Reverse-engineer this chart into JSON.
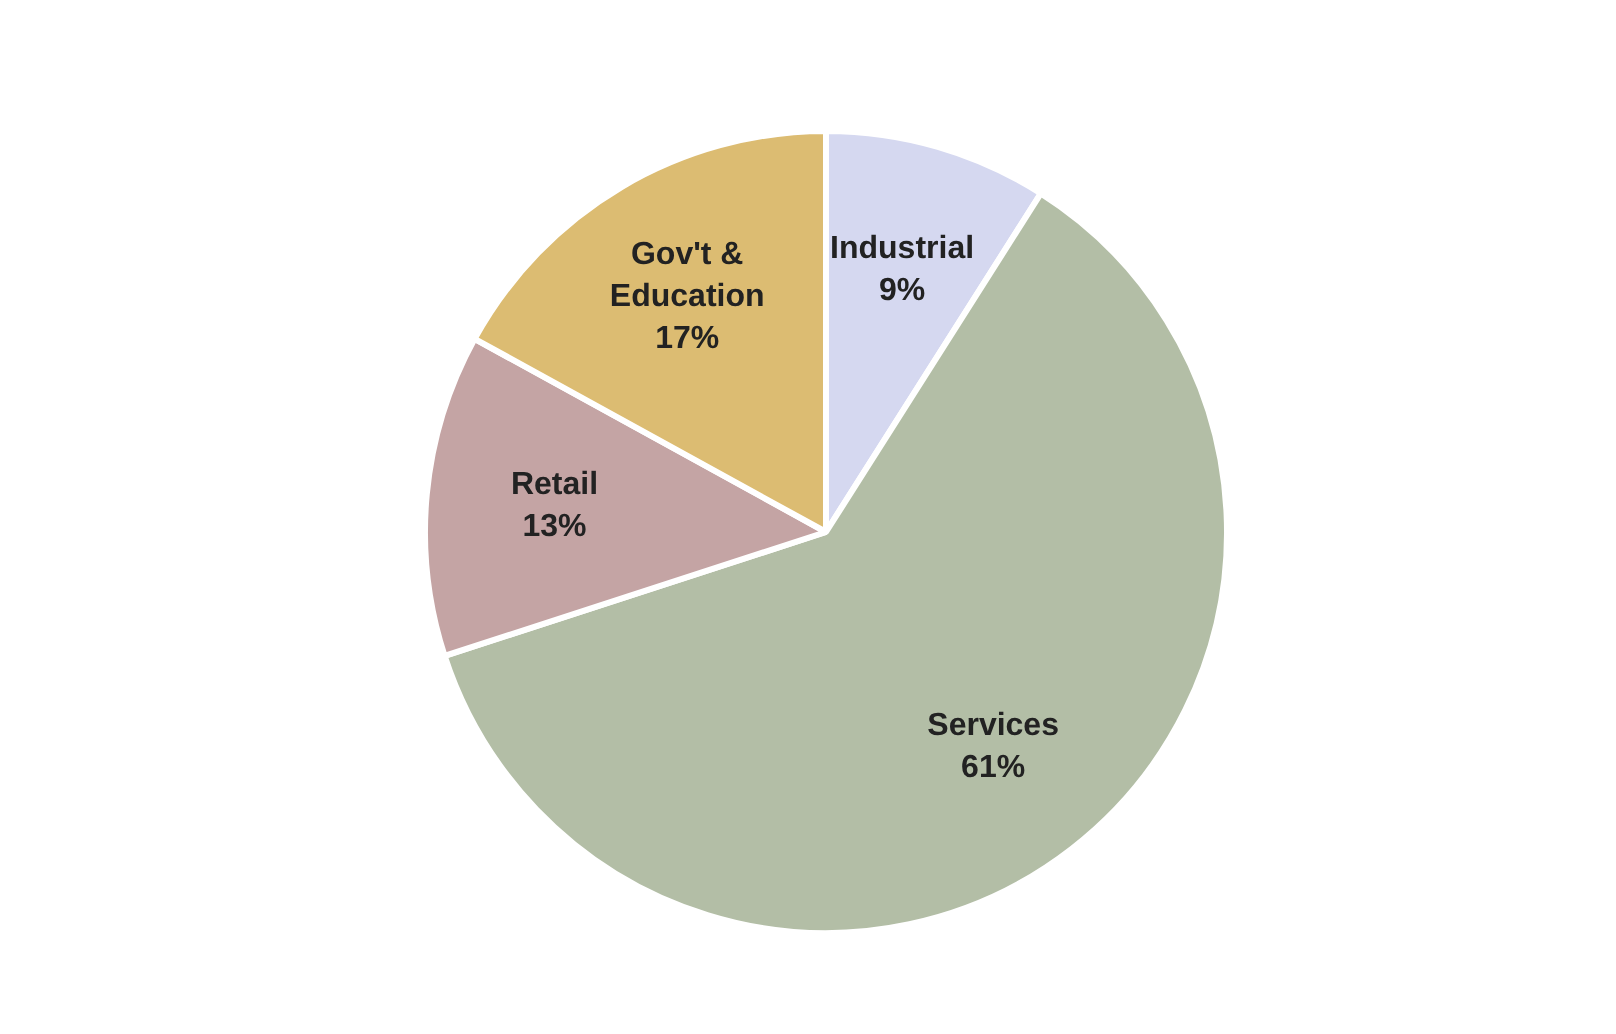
{
  "chart_data": {
    "type": "pie",
    "categories": [
      "Industrial",
      "Services",
      "Retail",
      "Gov't & Education"
    ],
    "values": [
      9,
      61,
      13,
      17
    ],
    "colors": [
      "#d5d8f0",
      "#b3bea6",
      "#c4a4a4",
      "#dcbc72"
    ],
    "value_labels": [
      "9%",
      "61%",
      "13%",
      "17%"
    ],
    "legend": false
  }
}
